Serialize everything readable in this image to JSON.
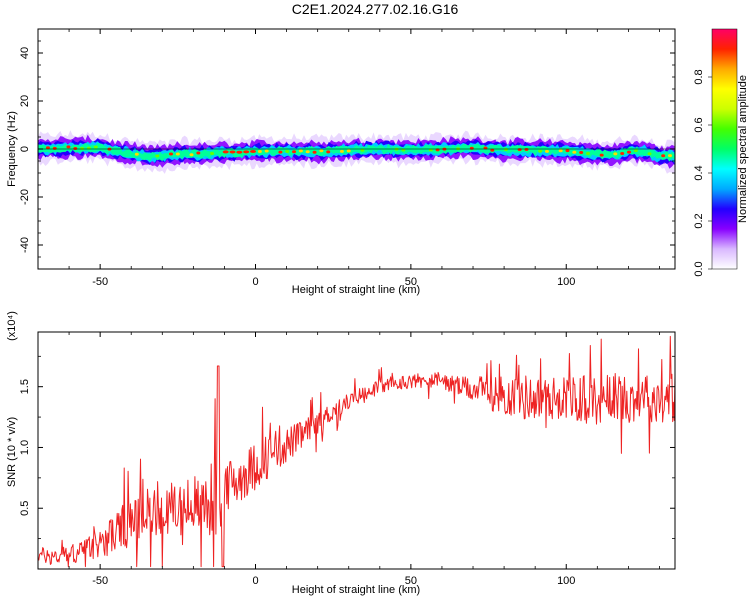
{
  "title": "C2E1.2024.277.02.16.G16",
  "chart_data": [
    {
      "type": "heatmap",
      "xlabel": "Height of straight line (km)",
      "ylabel": "Frequency (Hz)",
      "xlim": [
        -70,
        135
      ],
      "ylim": [
        -50,
        50
      ],
      "x_ticks": [
        -50,
        0,
        50,
        100
      ],
      "y_ticks": [
        -40,
        -20,
        0,
        20,
        40
      ],
      "x_tick_labels": [
        "-50",
        "0",
        "50",
        "100"
      ],
      "y_tick_labels": [
        "-40",
        "-20",
        "0",
        "20",
        "40"
      ],
      "center_frequency": [
        [
          -70,
          0
        ],
        [
          -60,
          0.5
        ],
        [
          -50,
          0.5
        ],
        [
          -45,
          -1
        ],
        [
          -40,
          -2
        ],
        [
          -35,
          -3
        ],
        [
          -30,
          -3
        ],
        [
          -25,
          -2
        ],
        [
          -20,
          -2
        ],
        [
          -15,
          -2
        ],
        [
          -10,
          -1.5
        ],
        [
          -5,
          -1.5
        ],
        [
          0,
          -1
        ],
        [
          10,
          -1
        ],
        [
          20,
          -1
        ],
        [
          30,
          -0.5
        ],
        [
          40,
          0
        ],
        [
          50,
          -0.5
        ],
        [
          60,
          0
        ],
        [
          70,
          0.5
        ],
        [
          80,
          -0.5
        ],
        [
          90,
          -0.5
        ],
        [
          100,
          -1
        ],
        [
          110,
          -2
        ],
        [
          115,
          -2.5
        ],
        [
          120,
          -1
        ],
        [
          125,
          -1
        ],
        [
          130,
          -3
        ],
        [
          135,
          -3
        ]
      ],
      "colorbar": {
        "label": "Normalized spectral amplitude",
        "range": [
          0,
          1
        ],
        "ticks": [
          0.0,
          0.2,
          0.4,
          0.6,
          0.8
        ],
        "tick_labels": [
          "0.0",
          "0.2",
          "0.4",
          "0.6",
          "0.8"
        ],
        "colors": [
          "#ffffff",
          "#d9b8ff",
          "#8800ff",
          "#2200ff",
          "#00aaff",
          "#00ffff",
          "#00ff66",
          "#44ff00",
          "#ccff00",
          "#ffff00",
          "#ffaa00",
          "#ff2200",
          "#ff0066"
        ]
      }
    },
    {
      "type": "line",
      "xlabel": "Height of straight line (km)",
      "ylabel": "SNR (10 * v/v)",
      "y_multiplier_label": "(x10⁴)",
      "xlim": [
        -70,
        135
      ],
      "ylim": [
        0,
        1.95
      ],
      "x_ticks": [
        -50,
        0,
        50,
        100
      ],
      "y_ticks": [
        0.5,
        1.0,
        1.5
      ],
      "x_tick_labels": [
        "-50",
        "0",
        "50",
        "100"
      ],
      "y_tick_labels": [
        "0.5",
        "1.0",
        "1.5"
      ],
      "line_color": "#ee2222",
      "series": [
        {
          "x": [
            -70,
            -65,
            -60,
            -55,
            -50,
            -45,
            -40,
            -35,
            -30,
            -25,
            -20,
            -15,
            -12,
            -10,
            -5,
            0,
            5,
            10,
            15,
            20,
            25,
            30,
            35,
            40,
            45,
            50,
            55,
            60,
            65,
            70,
            75,
            80,
            85,
            90,
            95,
            100,
            105,
            110,
            115,
            120,
            125,
            130,
            135
          ],
          "values": [
            0.12,
            0.1,
            0.12,
            0.15,
            0.22,
            0.3,
            0.38,
            0.45,
            0.48,
            0.5,
            0.52,
            0.55,
            0.6,
            0.65,
            0.75,
            0.85,
            0.95,
            1.02,
            1.1,
            1.2,
            1.3,
            1.38,
            1.45,
            1.5,
            1.52,
            1.55,
            1.56,
            1.55,
            1.5,
            1.48,
            1.45,
            1.43,
            1.42,
            1.4,
            1.4,
            1.42,
            1.4,
            1.38,
            1.42,
            1.4,
            1.42,
            1.4,
            1.42
          ],
          "noise_amplitude": [
            0.06,
            0.08,
            0.08,
            0.1,
            0.12,
            0.18,
            0.2,
            0.22,
            0.22,
            0.22,
            0.25,
            0.3,
            0.35,
            0.25,
            0.2,
            0.2,
            0.18,
            0.15,
            0.12,
            0.1,
            0.08,
            0.07,
            0.06,
            0.06,
            0.06,
            0.06,
            0.06,
            0.07,
            0.08,
            0.1,
            0.14,
            0.16,
            0.2,
            0.18,
            0.18,
            0.18,
            0.2,
            0.2,
            0.2,
            0.2,
            0.2,
            0.2,
            0.22
          ]
        }
      ]
    }
  ]
}
